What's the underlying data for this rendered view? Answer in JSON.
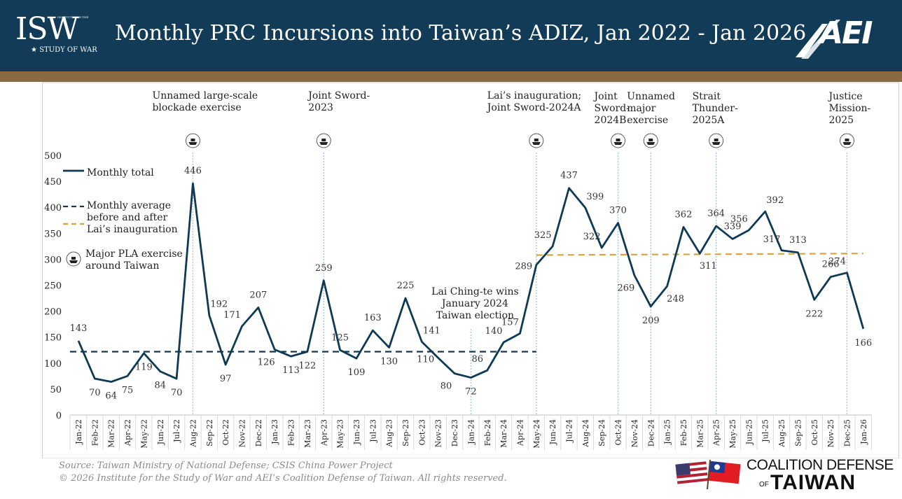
{
  "header": {
    "title": "Monthly PRC Incursions into Taiwan’s ADIZ, Jan 2022 - Jan 2026",
    "isw_logo_text": "ISW",
    "isw_logo_subtitle": "STUDY OF WAR",
    "isw_logo_small": "INSTITUTE FOR THE",
    "aei_logo_text": "AEI"
  },
  "colors": {
    "header_bg": "#123b58",
    "stripe": "#8a6a42",
    "series_line": "#0f3a55",
    "avg_after": "#d4a640",
    "exercise_line": "#9cc3dd"
  },
  "chart_data": {
    "type": "line",
    "title": "Monthly PRC Incursions into Taiwan’s ADIZ, Jan 2022 - Jan 2026",
    "ylim": [
      0,
      500
    ],
    "yticks": [
      0,
      50,
      100,
      150,
      200,
      250,
      300,
      350,
      400,
      450,
      500
    ],
    "categories": [
      "Jan-22",
      "Feb-22",
      "Mar-22",
      "Apr-22",
      "May-22",
      "Jun-22",
      "Jul-22",
      "Aug-22",
      "Sep-22",
      "Oct-22",
      "Nov-22",
      "Dec-22",
      "Jan-23",
      "Feb-23",
      "Mar-23",
      "Apr-23",
      "May-23",
      "Jun-23",
      "Jul-23",
      "Aug-23",
      "Sep-23",
      "Oct-23",
      "Nov-23",
      "Dec-23",
      "Jan-24",
      "Feb-24",
      "Mar-24",
      "Apr-24",
      "May-24",
      "Jun-24",
      "Jul-24",
      "Aug-24",
      "Sep-24",
      "Oct-24",
      "Nov-24",
      "Dec-24",
      "Jan-25",
      "Feb-25",
      "Mar-25",
      "Apr-25",
      "May-25",
      "Jun-25",
      "Jul-25",
      "Aug-25",
      "Sep-25",
      "Oct-25",
      "Nov-25",
      "Dec-25",
      "Jan-26"
    ],
    "series": [
      {
        "name": "Monthly total",
        "values": [
          143,
          70,
          64,
          75,
          119,
          84,
          70,
          446,
          192,
          97,
          171,
          207,
          126,
          113,
          122,
          259,
          125,
          109,
          163,
          130,
          225,
          141,
          110,
          80,
          72,
          86,
          140,
          157,
          289,
          325,
          437,
          399,
          322,
          370,
          269,
          209,
          248,
          362,
          311,
          364,
          339,
          356,
          392,
          317,
          313,
          222,
          266,
          274,
          166
        ]
      }
    ],
    "data_labels": [
      {
        "i": 0,
        "text": "143",
        "pos": "above"
      },
      {
        "i": 1,
        "text": "70",
        "pos": "below"
      },
      {
        "i": 2,
        "text": "64",
        "pos": "below"
      },
      {
        "i": 3,
        "text": "75",
        "pos": "below"
      },
      {
        "i": 4,
        "text": "119",
        "pos": "below"
      },
      {
        "i": 5,
        "text": "84",
        "pos": "below"
      },
      {
        "i": 6,
        "text": "70",
        "pos": "below"
      },
      {
        "i": 7,
        "text": "446",
        "pos": "above"
      },
      {
        "i": 8,
        "text": "192",
        "pos": "above-right"
      },
      {
        "i": 9,
        "text": "97",
        "pos": "below"
      },
      {
        "i": 10,
        "text": "171",
        "pos": "above-left"
      },
      {
        "i": 11,
        "text": "207",
        "pos": "above"
      },
      {
        "i": 12,
        "text": "126",
        "pos": "below-left"
      },
      {
        "i": 13,
        "text": "113",
        "pos": "below"
      },
      {
        "i": 14,
        "text": "122",
        "pos": "below"
      },
      {
        "i": 15,
        "text": "259",
        "pos": "above"
      },
      {
        "i": 16,
        "text": "125",
        "pos": "above"
      },
      {
        "i": 17,
        "text": "109",
        "pos": "below"
      },
      {
        "i": 18,
        "text": "163",
        "pos": "above"
      },
      {
        "i": 19,
        "text": "130",
        "pos": "below"
      },
      {
        "i": 20,
        "text": "225",
        "pos": "above"
      },
      {
        "i": 21,
        "text": "141",
        "pos": "above-right"
      },
      {
        "i": 22,
        "text": "110",
        "pos": "left"
      },
      {
        "i": 23,
        "text": "80",
        "pos": "below-left"
      },
      {
        "i": 24,
        "text": "72",
        "pos": "below"
      },
      {
        "i": 25,
        "text": "86",
        "pos": "above-left"
      },
      {
        "i": 26,
        "text": "140",
        "pos": "above-left"
      },
      {
        "i": 27,
        "text": "157",
        "pos": "above-left"
      },
      {
        "i": 28,
        "text": "289",
        "pos": "left"
      },
      {
        "i": 29,
        "text": "325",
        "pos": "above-left"
      },
      {
        "i": 30,
        "text": "437",
        "pos": "above"
      },
      {
        "i": 31,
        "text": "399",
        "pos": "above-right"
      },
      {
        "i": 32,
        "text": "322",
        "pos": "above-left"
      },
      {
        "i": 33,
        "text": "370",
        "pos": "above"
      },
      {
        "i": 34,
        "text": "269",
        "pos": "below-left"
      },
      {
        "i": 35,
        "text": "209",
        "pos": "below"
      },
      {
        "i": 36,
        "text": "248",
        "pos": "below-right"
      },
      {
        "i": 37,
        "text": "362",
        "pos": "above"
      },
      {
        "i": 38,
        "text": "311",
        "pos": "below-right"
      },
      {
        "i": 39,
        "text": "364",
        "pos": "above"
      },
      {
        "i": 40,
        "text": "339",
        "pos": "above"
      },
      {
        "i": 41,
        "text": "356",
        "pos": "above-left"
      },
      {
        "i": 42,
        "text": "392",
        "pos": "above-right"
      },
      {
        "i": 43,
        "text": "317",
        "pos": "above-left"
      },
      {
        "i": 44,
        "text": "313",
        "pos": "above"
      },
      {
        "i": 45,
        "text": "222",
        "pos": "below"
      },
      {
        "i": 46,
        "text": "266",
        "pos": "above"
      },
      {
        "i": 47,
        "text": "274",
        "pos": "above-left"
      },
      {
        "i": 48,
        "text": "166",
        "pos": "below"
      }
    ],
    "averages": [
      {
        "name": "Monthly average before Lai’s inauguration",
        "value": 122,
        "from_index": 0,
        "to_index": 28,
        "style": "dashed-navy"
      },
      {
        "name": "Monthly average after Lai’s inauguration",
        "value": 308,
        "from_index": 28,
        "to_index": 48,
        "style": "dashed-gold",
        "end_value": 311
      }
    ],
    "exercises": [
      {
        "index": 7,
        "label": [
          "Unnamed large-scale",
          "blockade exercise"
        ]
      },
      {
        "index": 15,
        "label": [
          "Joint Sword-",
          "2023"
        ]
      },
      {
        "index": 28,
        "label": [
          "Lai’s inauguration;",
          "Joint Sword-2024A"
        ]
      },
      {
        "index": 33,
        "label": [
          "Joint",
          "Sword-",
          "2024B"
        ]
      },
      {
        "index": 35,
        "label": [
          "Unnamed",
          "major",
          "exercise"
        ]
      },
      {
        "index": 39,
        "label": [
          "Strait",
          "Thunder-",
          "2025A"
        ]
      },
      {
        "index": 47,
        "label": [
          "Justice",
          "Mission-",
          "2025"
        ]
      }
    ],
    "election_marker": {
      "index": 24,
      "label": [
        "Lai Ching-te wins",
        "January 2024",
        "Taiwan election"
      ]
    },
    "legend": {
      "placement": "top-left",
      "items": [
        {
          "key": "line",
          "label": [
            "Monthly total"
          ]
        },
        {
          "key": "dashed",
          "label": [
            "Monthly average",
            "before and after",
            "Lai’s inauguration"
          ]
        },
        {
          "key": "exercise",
          "label": [
            "Major PLA exercise",
            "around Taiwan"
          ]
        }
      ]
    }
  },
  "footer": {
    "source": "Source: Taiwan Ministry of National Defense; CSIS China Power Project",
    "copyright": "© 2026 Institute for the Study of War and AEI’s Coalition Defense of Taiwan. All rights reserved.",
    "cdt_logo_line1": "COALITION DEFENSE",
    "cdt_logo_of": "OF",
    "cdt_logo_line2": "TAIWAN"
  }
}
